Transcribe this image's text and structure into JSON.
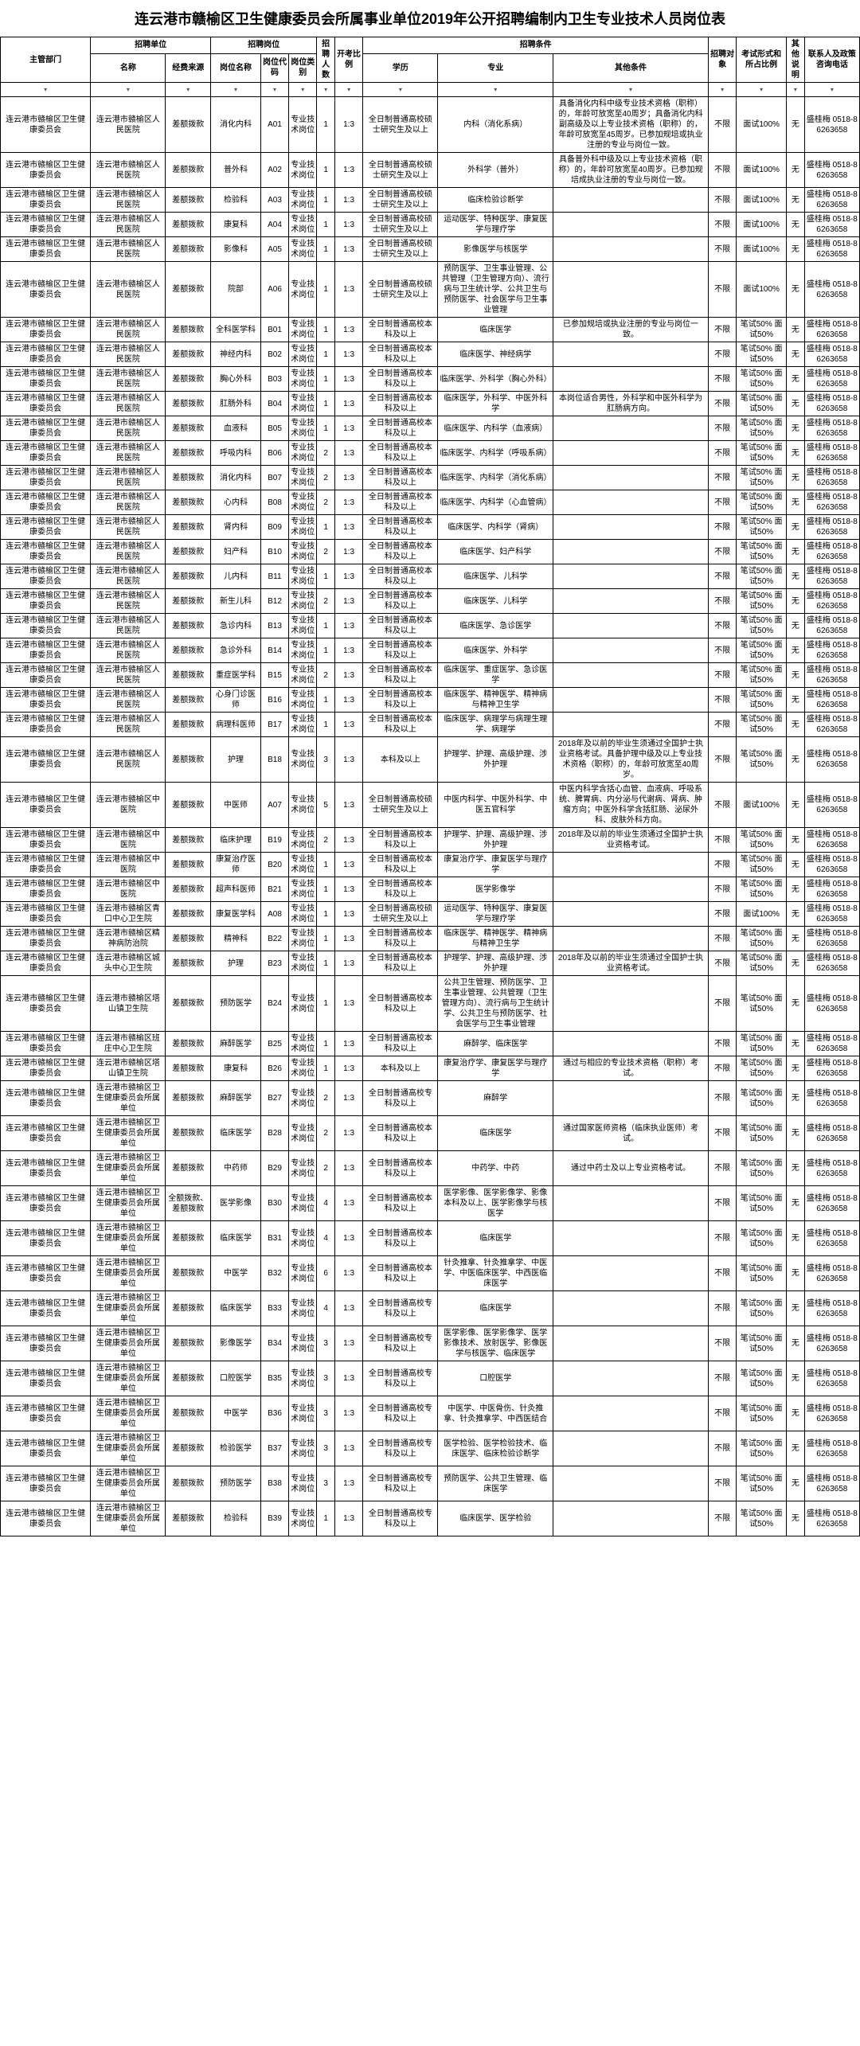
{
  "title": "连云港市赣榆区卫生健康委员会所属事业单位2019年公开招聘编制内卫生专业技术人员岗位表",
  "headers": {
    "dept": "主管部门",
    "unitGroup": "招聘单位",
    "unitName": "名称",
    "fund": "经费来源",
    "jobGroup": "招聘岗位",
    "jobName": "岗位名称",
    "jobCode": "岗位代码",
    "jobCat": "岗位类别",
    "num": "招聘人数",
    "ratio": "开考比例",
    "condGroup": "招聘条件",
    "edu": "学历",
    "major": "专业",
    "other": "其他条件",
    "target": "招聘对象",
    "exam": "考试形式和所占比例",
    "note": "其他说明",
    "contact": "联系人及政策咨询电话"
  },
  "rows": [
    {
      "dept": "连云港市赣榆区卫生健康委员会",
      "unit": "连云港市赣榆区人民医院",
      "fund": "差额拨款",
      "jobName": "消化内科",
      "code": "A01",
      "cat": "专业技术岗位",
      "num": "1",
      "ratio": "1:3",
      "edu": "全日制普通高校硕士研究生及以上",
      "major": "内科（消化系病）",
      "other": "具备消化内科中级专业技术资格（职称）的，年龄可放宽至40周岁；具备消化内科副高级及以上专业技术资格（职称）的，年龄可放宽至45周岁。已参加规培或执业注册的专业与岗位一致。",
      "target": "不限",
      "exam": "面试100%",
      "note": "无",
      "contact": "盛桂梅 0518-86263658"
    },
    {
      "dept": "连云港市赣榆区卫生健康委员会",
      "unit": "连云港市赣榆区人民医院",
      "fund": "差额拨款",
      "jobName": "普外科",
      "code": "A02",
      "cat": "专业技术岗位",
      "num": "1",
      "ratio": "1:3",
      "edu": "全日制普通高校硕士研究生及以上",
      "major": "外科学（普外）",
      "other": "具备普外科中级及以上专业技术资格（职称）的，年龄可放宽至40周岁。已参加规培成执业注册的专业与岗位一致。",
      "target": "不限",
      "exam": "面试100%",
      "note": "无",
      "contact": "盛桂梅 0518-86263658"
    },
    {
      "dept": "连云港市赣榆区卫生健康委员会",
      "unit": "连云港市赣榆区人民医院",
      "fund": "差额拨款",
      "jobName": "检验科",
      "code": "A03",
      "cat": "专业技术岗位",
      "num": "1",
      "ratio": "1:3",
      "edu": "全日制普通高校硕士研究生及以上",
      "major": "临床检验诊断学",
      "other": "",
      "target": "不限",
      "exam": "面试100%",
      "note": "无",
      "contact": "盛桂梅 0518-86263658"
    },
    {
      "dept": "连云港市赣榆区卫生健康委员会",
      "unit": "连云港市赣榆区人民医院",
      "fund": "差额拨款",
      "jobName": "康复科",
      "code": "A04",
      "cat": "专业技术岗位",
      "num": "1",
      "ratio": "1:3",
      "edu": "全日制普通高校硕士研究生及以上",
      "major": "运动医学、特种医学、康复医学与理疗学",
      "other": "",
      "target": "不限",
      "exam": "面试100%",
      "note": "无",
      "contact": "盛桂梅 0518-86263658"
    },
    {
      "dept": "连云港市赣榆区卫生健康委员会",
      "unit": "连云港市赣榆区人民医院",
      "fund": "差额拨款",
      "jobName": "影像科",
      "code": "A05",
      "cat": "专业技术岗位",
      "num": "1",
      "ratio": "1:3",
      "edu": "全日制普通高校硕士研究生及以上",
      "major": "影像医学与核医学",
      "other": "",
      "target": "不限",
      "exam": "面试100%",
      "note": "无",
      "contact": "盛桂梅 0518-86263658"
    },
    {
      "dept": "连云港市赣榆区卫生健康委员会",
      "unit": "连云港市赣榆区人民医院",
      "fund": "差额拨款",
      "jobName": "院部",
      "code": "A06",
      "cat": "专业技术岗位",
      "num": "1",
      "ratio": "1:3",
      "edu": "全日制普通高校硕士研究生及以上",
      "major": "预防医学、卫生事业管理、公共管理（卫生管理方向）、流行病与卫生统计学、公共卫生与预防医学、社会医学与卫生事业管理",
      "other": "",
      "target": "不限",
      "exam": "面试100%",
      "note": "无",
      "contact": "盛桂梅 0518-86263658"
    },
    {
      "dept": "连云港市赣榆区卫生健康委员会",
      "unit": "连云港市赣榆区人民医院",
      "fund": "差额拨款",
      "jobName": "全科医学科",
      "code": "B01",
      "cat": "专业技术岗位",
      "num": "1",
      "ratio": "1:3",
      "edu": "全日制普通高校本科及以上",
      "major": "临床医学",
      "other": "已参加规培或执业注册的专业与岗位一致。",
      "target": "不限",
      "exam": "笔试50% 面试50%",
      "note": "无",
      "contact": "盛桂梅 0518-86263658"
    },
    {
      "dept": "连云港市赣榆区卫生健康委员会",
      "unit": "连云港市赣榆区人民医院",
      "fund": "差额拨款",
      "jobName": "神经内科",
      "code": "B02",
      "cat": "专业技术岗位",
      "num": "1",
      "ratio": "1:3",
      "edu": "全日制普通高校本科及以上",
      "major": "临床医学、神经病学",
      "other": "",
      "target": "不限",
      "exam": "笔试50% 面试50%",
      "note": "无",
      "contact": "盛桂梅 0518-86263658"
    },
    {
      "dept": "连云港市赣榆区卫生健康委员会",
      "unit": "连云港市赣榆区人民医院",
      "fund": "差额拨款",
      "jobName": "胸心外科",
      "code": "B03",
      "cat": "专业技术岗位",
      "num": "1",
      "ratio": "1:3",
      "edu": "全日制普通高校本科及以上",
      "major": "临床医学、外科学（胸心外科）",
      "other": "",
      "target": "不限",
      "exam": "笔试50% 面试50%",
      "note": "无",
      "contact": "盛桂梅 0518-86263658"
    },
    {
      "dept": "连云港市赣榆区卫生健康委员会",
      "unit": "连云港市赣榆区人民医院",
      "fund": "差额拨款",
      "jobName": "肛肠外科",
      "code": "B04",
      "cat": "专业技术岗位",
      "num": "1",
      "ratio": "1:3",
      "edu": "全日制普通高校本科及以上",
      "major": "临床医学，外科学、中医外科学",
      "other": "本岗位适合男性，外科学和中医外科学为肛肠病方向。",
      "target": "不限",
      "exam": "笔试50% 面试50%",
      "note": "无",
      "contact": "盛桂梅 0518-86263658"
    },
    {
      "dept": "连云港市赣榆区卫生健康委员会",
      "unit": "连云港市赣榆区人民医院",
      "fund": "差额拨款",
      "jobName": "血液科",
      "code": "B05",
      "cat": "专业技术岗位",
      "num": "1",
      "ratio": "1:3",
      "edu": "全日制普通高校本科及以上",
      "major": "临床医学、内科学（血液病）",
      "other": "",
      "target": "不限",
      "exam": "笔试50% 面试50%",
      "note": "无",
      "contact": "盛桂梅 0518-86263658"
    },
    {
      "dept": "连云港市赣榆区卫生健康委员会",
      "unit": "连云港市赣榆区人民医院",
      "fund": "差额拨款",
      "jobName": "呼吸内科",
      "code": "B06",
      "cat": "专业技术岗位",
      "num": "2",
      "ratio": "1:3",
      "edu": "全日制普通高校本科及以上",
      "major": "临床医学、内科学（呼吸系病）",
      "other": "",
      "target": "不限",
      "exam": "笔试50% 面试50%",
      "note": "无",
      "contact": "盛桂梅 0518-86263658"
    },
    {
      "dept": "连云港市赣榆区卫生健康委员会",
      "unit": "连云港市赣榆区人民医院",
      "fund": "差额拨款",
      "jobName": "消化内科",
      "code": "B07",
      "cat": "专业技术岗位",
      "num": "2",
      "ratio": "1:3",
      "edu": "全日制普通高校本科及以上",
      "major": "临床医学、内科学（消化系病）",
      "other": "",
      "target": "不限",
      "exam": "笔试50% 面试50%",
      "note": "无",
      "contact": "盛桂梅 0518-86263658"
    },
    {
      "dept": "连云港市赣榆区卫生健康委员会",
      "unit": "连云港市赣榆区人民医院",
      "fund": "差额拨款",
      "jobName": "心内科",
      "code": "B08",
      "cat": "专业技术岗位",
      "num": "2",
      "ratio": "1:3",
      "edu": "全日制普通高校本科及以上",
      "major": "临床医学、内科学（心血管病）",
      "other": "",
      "target": "不限",
      "exam": "笔试50% 面试50%",
      "note": "无",
      "contact": "盛桂梅 0518-86263658"
    },
    {
      "dept": "连云港市赣榆区卫生健康委员会",
      "unit": "连云港市赣榆区人民医院",
      "fund": "差额拨款",
      "jobName": "肾内科",
      "code": "B09",
      "cat": "专业技术岗位",
      "num": "1",
      "ratio": "1:3",
      "edu": "全日制普通高校本科及以上",
      "major": "临床医学、内科学（肾病）",
      "other": "",
      "target": "不限",
      "exam": "笔试50% 面试50%",
      "note": "无",
      "contact": "盛桂梅 0518-86263658"
    },
    {
      "dept": "连云港市赣榆区卫生健康委员会",
      "unit": "连云港市赣榆区人民医院",
      "fund": "差额拨款",
      "jobName": "妇产科",
      "code": "B10",
      "cat": "专业技术岗位",
      "num": "2",
      "ratio": "1:3",
      "edu": "全日制普通高校本科及以上",
      "major": "临床医学、妇产科学",
      "other": "",
      "target": "不限",
      "exam": "笔试50% 面试50%",
      "note": "无",
      "contact": "盛桂梅 0518-86263658"
    },
    {
      "dept": "连云港市赣榆区卫生健康委员会",
      "unit": "连云港市赣榆区人民医院",
      "fund": "差额拨款",
      "jobName": "儿内科",
      "code": "B11",
      "cat": "专业技术岗位",
      "num": "1",
      "ratio": "1:3",
      "edu": "全日制普通高校本科及以上",
      "major": "临床医学、儿科学",
      "other": "",
      "target": "不限",
      "exam": "笔试50% 面试50%",
      "note": "无",
      "contact": "盛桂梅 0518-86263658"
    },
    {
      "dept": "连云港市赣榆区卫生健康委员会",
      "unit": "连云港市赣榆区人民医院",
      "fund": "差额拨款",
      "jobName": "新生儿科",
      "code": "B12",
      "cat": "专业技术岗位",
      "num": "2",
      "ratio": "1:3",
      "edu": "全日制普通高校本科及以上",
      "major": "临床医学、儿科学",
      "other": "",
      "target": "不限",
      "exam": "笔试50% 面试50%",
      "note": "无",
      "contact": "盛桂梅 0518-86263658"
    },
    {
      "dept": "连云港市赣榆区卫生健康委员会",
      "unit": "连云港市赣榆区人民医院",
      "fund": "差额拨款",
      "jobName": "急诊内科",
      "code": "B13",
      "cat": "专业技术岗位",
      "num": "1",
      "ratio": "1:3",
      "edu": "全日制普通高校本科及以上",
      "major": "临床医学、急诊医学",
      "other": "",
      "target": "不限",
      "exam": "笔试50% 面试50%",
      "note": "无",
      "contact": "盛桂梅 0518-86263658"
    },
    {
      "dept": "连云港市赣榆区卫生健康委员会",
      "unit": "连云港市赣榆区人民医院",
      "fund": "差额拨款",
      "jobName": "急诊外科",
      "code": "B14",
      "cat": "专业技术岗位",
      "num": "1",
      "ratio": "1:3",
      "edu": "全日制普通高校本科及以上",
      "major": "临床医学、外科学",
      "other": "",
      "target": "不限",
      "exam": "笔试50% 面试50%",
      "note": "无",
      "contact": "盛桂梅 0518-86263658"
    },
    {
      "dept": "连云港市赣榆区卫生健康委员会",
      "unit": "连云港市赣榆区人民医院",
      "fund": "差额拨款",
      "jobName": "重症医学科",
      "code": "B15",
      "cat": "专业技术岗位",
      "num": "2",
      "ratio": "1:3",
      "edu": "全日制普通高校本科及以上",
      "major": "临床医学、重症医学、急诊医学",
      "other": "",
      "target": "不限",
      "exam": "笔试50% 面试50%",
      "note": "无",
      "contact": "盛桂梅 0518-86263658"
    },
    {
      "dept": "连云港市赣榆区卫生健康委员会",
      "unit": "连云港市赣榆区人民医院",
      "fund": "差额拨款",
      "jobName": "心身门诊医师",
      "code": "B16",
      "cat": "专业技术岗位",
      "num": "1",
      "ratio": "1:3",
      "edu": "全日制普通高校本科及以上",
      "major": "临床医学、精神医学、精神病与精神卫生学",
      "other": "",
      "target": "不限",
      "exam": "笔试50% 面试50%",
      "note": "无",
      "contact": "盛桂梅 0518-86263658"
    },
    {
      "dept": "连云港市赣榆区卫生健康委员会",
      "unit": "连云港市赣榆区人民医院",
      "fund": "差额拨款",
      "jobName": "病理科医师",
      "code": "B17",
      "cat": "专业技术岗位",
      "num": "1",
      "ratio": "1:3",
      "edu": "全日制普通高校本科及以上",
      "major": "临床医学、病理学与病理生理学、病理学",
      "other": "",
      "target": "不限",
      "exam": "笔试50% 面试50%",
      "note": "无",
      "contact": "盛桂梅 0518-86263658"
    },
    {
      "dept": "连云港市赣榆区卫生健康委员会",
      "unit": "连云港市赣榆区人民医院",
      "fund": "差额拨款",
      "jobName": "护理",
      "code": "B18",
      "cat": "专业技术岗位",
      "num": "3",
      "ratio": "1:3",
      "edu": "本科及以上",
      "major": "护理学、护理、高级护理、涉外护理",
      "other": "2018年及以前的毕业生须通过全国护士执业资格考试。具备护理中级及以上专业技术资格（职称）的，年龄可放宽至40周岁。",
      "target": "不限",
      "exam": "笔试50% 面试50%",
      "note": "无",
      "contact": "盛桂梅 0518-86263658"
    },
    {
      "dept": "连云港市赣榆区卫生健康委员会",
      "unit": "连云港市赣榆区中医院",
      "fund": "差额拨款",
      "jobName": "中医师",
      "code": "A07",
      "cat": "专业技术岗位",
      "num": "5",
      "ratio": "1:3",
      "edu": "全日制普通高校硕士研究生及以上",
      "major": "中医内科学、中医外科学、中医五官科学",
      "other": "中医内科学含括心血管、血液病、呼吸系统、脾胃病、内分泌与代谢病、肾病、肿瘤方向；中医外科学含括肛肠、泌尿外科、皮肤外科方向。",
      "target": "不限",
      "exam": "面试100%",
      "note": "无",
      "contact": "盛桂梅 0518-86263658"
    },
    {
      "dept": "连云港市赣榆区卫生健康委员会",
      "unit": "连云港市赣榆区中医院",
      "fund": "差额拨款",
      "jobName": "临床护理",
      "code": "B19",
      "cat": "专业技术岗位",
      "num": "2",
      "ratio": "1:3",
      "edu": "全日制普通高校本科及以上",
      "major": "护理学、护理、高级护理、涉外护理",
      "other": "2018年及以前的毕业生须通过全国护士执业资格考试。",
      "target": "不限",
      "exam": "笔试50% 面试50%",
      "note": "无",
      "contact": "盛桂梅 0518-86263658"
    },
    {
      "dept": "连云港市赣榆区卫生健康委员会",
      "unit": "连云港市赣榆区中医院",
      "fund": "差额拨款",
      "jobName": "康复治疗医师",
      "code": "B20",
      "cat": "专业技术岗位",
      "num": "1",
      "ratio": "1:3",
      "edu": "全日制普通高校本科及以上",
      "major": "康复治疗学、康复医学与理疗学",
      "other": "",
      "target": "不限",
      "exam": "笔试50% 面试50%",
      "note": "无",
      "contact": "盛桂梅 0518-86263658"
    },
    {
      "dept": "连云港市赣榆区卫生健康委员会",
      "unit": "连云港市赣榆区中医院",
      "fund": "差额拨款",
      "jobName": "超声科医师",
      "code": "B21",
      "cat": "专业技术岗位",
      "num": "1",
      "ratio": "1:3",
      "edu": "全日制普通高校本科及以上",
      "major": "医学影像学",
      "other": "",
      "target": "不限",
      "exam": "笔试50% 面试50%",
      "note": "无",
      "contact": "盛桂梅 0518-86263658"
    },
    {
      "dept": "连云港市赣榆区卫生健康委员会",
      "unit": "连云港市赣榆区青口中心卫生院",
      "fund": "差额拨款",
      "jobName": "康复医学科",
      "code": "A08",
      "cat": "专业技术岗位",
      "num": "1",
      "ratio": "1:3",
      "edu": "全日制普通高校硕士研究生及以上",
      "major": "运动医学、特种医学、康复医学与理疗学",
      "other": "",
      "target": "不限",
      "exam": "面试100%",
      "note": "无",
      "contact": "盛桂梅 0518-86263658"
    },
    {
      "dept": "连云港市赣榆区卫生健康委员会",
      "unit": "连云港市赣榆区精神病防治院",
      "fund": "差额拨款",
      "jobName": "精神科",
      "code": "B22",
      "cat": "专业技术岗位",
      "num": "1",
      "ratio": "1:3",
      "edu": "全日制普通高校本科及以上",
      "major": "临床医学、精神医学、精神病与精神卫生学",
      "other": "",
      "target": "不限",
      "exam": "笔试50% 面试50%",
      "note": "无",
      "contact": "盛桂梅 0518-86263658"
    },
    {
      "dept": "连云港市赣榆区卫生健康委员会",
      "unit": "连云港市赣榆区城头中心卫生院",
      "fund": "差额拨款",
      "jobName": "护理",
      "code": "B23",
      "cat": "专业技术岗位",
      "num": "1",
      "ratio": "1:3",
      "edu": "全日制普通高校本科及以上",
      "major": "护理学、护理、高级护理、涉外护理",
      "other": "2018年及以前的毕业生须通过全国护士执业资格考试。",
      "target": "不限",
      "exam": "笔试50% 面试50%",
      "note": "无",
      "contact": "盛桂梅 0518-86263658"
    },
    {
      "dept": "连云港市赣榆区卫生健康委员会",
      "unit": "连云港市赣榆区塔山镇卫生院",
      "fund": "差额拨款",
      "jobName": "预防医学",
      "code": "B24",
      "cat": "专业技术岗位",
      "num": "1",
      "ratio": "1:3",
      "edu": "全日制普通高校本科及以上",
      "major": "公共卫生管理、预防医学、卫生事业管理、公共管理（卫生管理方向）、流行病与卫生统计学、公共卫生与预防医学、社会医学与卫生事业管理",
      "other": "",
      "target": "不限",
      "exam": "笔试50% 面试50%",
      "note": "无",
      "contact": "盛桂梅 0518-86263658"
    },
    {
      "dept": "连云港市赣榆区卫生健康委员会",
      "unit": "连云港市赣榆区班庄中心卫生院",
      "fund": "差额拨款",
      "jobName": "麻醉医学",
      "code": "B25",
      "cat": "专业技术岗位",
      "num": "1",
      "ratio": "1:3",
      "edu": "全日制普通高校本科及以上",
      "major": "麻醉学、临床医学",
      "other": "",
      "target": "不限",
      "exam": "笔试50% 面试50%",
      "note": "无",
      "contact": "盛桂梅 0518-86263658"
    },
    {
      "dept": "连云港市赣榆区卫生健康委员会",
      "unit": "连云港市赣榆区塔山镇卫生院",
      "fund": "差额拨款",
      "jobName": "康复科",
      "code": "B26",
      "cat": "专业技术岗位",
      "num": "1",
      "ratio": "1:3",
      "edu": "本科及以上",
      "major": "康复治疗学、康复医学与理疗学",
      "other": "通过与相应的专业技术资格（职称）考试。",
      "target": "不限",
      "exam": "笔试50% 面试50%",
      "note": "无",
      "contact": "盛桂梅 0518-86263658"
    },
    {
      "dept": "连云港市赣榆区卫生健康委员会",
      "unit": "连云港市赣榆区卫生健康委员会所属单位",
      "fund": "差额拨款",
      "jobName": "麻醉医学",
      "code": "B27",
      "cat": "专业技术岗位",
      "num": "2",
      "ratio": "1:3",
      "edu": "全日制普通高校专科及以上",
      "major": "麻醉学",
      "other": "",
      "target": "不限",
      "exam": "笔试50% 面试50%",
      "note": "无",
      "contact": "盛桂梅 0518-86263658"
    },
    {
      "dept": "连云港市赣榆区卫生健康委员会",
      "unit": "连云港市赣榆区卫生健康委员会所属单位",
      "fund": "差额拨款",
      "jobName": "临床医学",
      "code": "B28",
      "cat": "专业技术岗位",
      "num": "2",
      "ratio": "1:3",
      "edu": "全日制普通高校本科及以上",
      "major": "临床医学",
      "other": "通过国家医师资格（临床执业医师）考试。",
      "target": "不限",
      "exam": "笔试50% 面试50%",
      "note": "无",
      "contact": "盛桂梅 0518-86263658"
    },
    {
      "dept": "连云港市赣榆区卫生健康委员会",
      "unit": "连云港市赣榆区卫生健康委员会所属单位",
      "fund": "差额拨款",
      "jobName": "中药师",
      "code": "B29",
      "cat": "专业技术岗位",
      "num": "2",
      "ratio": "1:3",
      "edu": "全日制普通高校本科及以上",
      "major": "中药学、中药",
      "other": "通过中药士及以上专业资格考试。",
      "target": "不限",
      "exam": "笔试50% 面试50%",
      "note": "无",
      "contact": "盛桂梅 0518-86263658"
    },
    {
      "dept": "连云港市赣榆区卫生健康委员会",
      "unit": "连云港市赣榆区卫生健康委员会所属单位",
      "fund": "全额拨款、差额拨款",
      "jobName": "医学影像",
      "code": "B30",
      "cat": "专业技术岗位",
      "num": "4",
      "ratio": "1:3",
      "edu": "全日制普通高校本科及以上",
      "major": "医学影像、医学影像学、影像本科及以上、医学影像学与核医学",
      "other": "",
      "target": "不限",
      "exam": "笔试50% 面试50%",
      "note": "无",
      "contact": "盛桂梅 0518-86263658"
    },
    {
      "dept": "连云港市赣榆区卫生健康委员会",
      "unit": "连云港市赣榆区卫生健康委员会所属单位",
      "fund": "差额拨款",
      "jobName": "临床医学",
      "code": "B31",
      "cat": "专业技术岗位",
      "num": "4",
      "ratio": "1:3",
      "edu": "全日制普通高校本科及以上",
      "major": "临床医学",
      "other": "",
      "target": "不限",
      "exam": "笔试50% 面试50%",
      "note": "无",
      "contact": "盛桂梅 0518-86263658"
    },
    {
      "dept": "连云港市赣榆区卫生健康委员会",
      "unit": "连云港市赣榆区卫生健康委员会所属单位",
      "fund": "差额拨款",
      "jobName": "中医学",
      "code": "B32",
      "cat": "专业技术岗位",
      "num": "6",
      "ratio": "1:3",
      "edu": "全日制普通高校本科及以上",
      "major": "针灸推拿、针灸推拿学、中医学、中医临床医学、中西医临床医学",
      "other": "",
      "target": "不限",
      "exam": "笔试50% 面试50%",
      "note": "无",
      "contact": "盛桂梅 0518-86263658"
    },
    {
      "dept": "连云港市赣榆区卫生健康委员会",
      "unit": "连云港市赣榆区卫生健康委员会所属单位",
      "fund": "差额拨款",
      "jobName": "临床医学",
      "code": "B33",
      "cat": "专业技术岗位",
      "num": "4",
      "ratio": "1:3",
      "edu": "全日制普通高校专科及以上",
      "major": "临床医学",
      "other": "",
      "target": "不限",
      "exam": "笔试50% 面试50%",
      "note": "无",
      "contact": "盛桂梅 0518-86263658"
    },
    {
      "dept": "连云港市赣榆区卫生健康委员会",
      "unit": "连云港市赣榆区卫生健康委员会所属单位",
      "fund": "差额拨款",
      "jobName": "影像医学",
      "code": "B34",
      "cat": "专业技术岗位",
      "num": "3",
      "ratio": "1:3",
      "edu": "全日制普通高校专科及以上",
      "major": "医学影像、医学影像学、医学影像技术、放射医学、影像医学与核医学、临床医学",
      "other": "",
      "target": "不限",
      "exam": "笔试50% 面试50%",
      "note": "无",
      "contact": "盛桂梅 0518-86263658"
    },
    {
      "dept": "连云港市赣榆区卫生健康委员会",
      "unit": "连云港市赣榆区卫生健康委员会所属单位",
      "fund": "差额拨款",
      "jobName": "口腔医学",
      "code": "B35",
      "cat": "专业技术岗位",
      "num": "3",
      "ratio": "1:3",
      "edu": "全日制普通高校专科及以上",
      "major": "口腔医学",
      "other": "",
      "target": "不限",
      "exam": "笔试50% 面试50%",
      "note": "无",
      "contact": "盛桂梅 0518-86263658"
    },
    {
      "dept": "连云港市赣榆区卫生健康委员会",
      "unit": "连云港市赣榆区卫生健康委员会所属单位",
      "fund": "差额拨款",
      "jobName": "中医学",
      "code": "B36",
      "cat": "专业技术岗位",
      "num": "3",
      "ratio": "1:3",
      "edu": "全日制普通高校专科及以上",
      "major": "中医学、中医骨伤、针灸推拿、针灸推拿学、中西医结合",
      "other": "",
      "target": "不限",
      "exam": "笔试50% 面试50%",
      "note": "无",
      "contact": "盛桂梅 0518-86263658"
    },
    {
      "dept": "连云港市赣榆区卫生健康委员会",
      "unit": "连云港市赣榆区卫生健康委员会所属单位",
      "fund": "差额拨款",
      "jobName": "检验医学",
      "code": "B37",
      "cat": "专业技术岗位",
      "num": "3",
      "ratio": "1:3",
      "edu": "全日制普通高校专科及以上",
      "major": "医学检验、医学检验技术、临床医学、临床检验诊断学",
      "other": "",
      "target": "不限",
      "exam": "笔试50% 面试50%",
      "note": "无",
      "contact": "盛桂梅 0518-86263658"
    },
    {
      "dept": "连云港市赣榆区卫生健康委员会",
      "unit": "连云港市赣榆区卫生健康委员会所属单位",
      "fund": "差额拨款",
      "jobName": "预防医学",
      "code": "B38",
      "cat": "专业技术岗位",
      "num": "3",
      "ratio": "1:3",
      "edu": "全日制普通高校专科及以上",
      "major": "预防医学、公共卫生管理、临床医学",
      "other": "",
      "target": "不限",
      "exam": "笔试50% 面试50%",
      "note": "无",
      "contact": "盛桂梅 0518-86263658"
    },
    {
      "dept": "连云港市赣榆区卫生健康委员会",
      "unit": "连云港市赣榆区卫生健康委员会所属单位",
      "fund": "差额拨款",
      "jobName": "检验科",
      "code": "B39",
      "cat": "专业技术岗位",
      "num": "1",
      "ratio": "1:3",
      "edu": "全日制普通高校专科及以上",
      "major": "临床医学、医学检验",
      "other": "",
      "target": "不限",
      "exam": "笔试50% 面试50%",
      "note": "无",
      "contact": "盛桂梅 0518-86263658"
    }
  ]
}
